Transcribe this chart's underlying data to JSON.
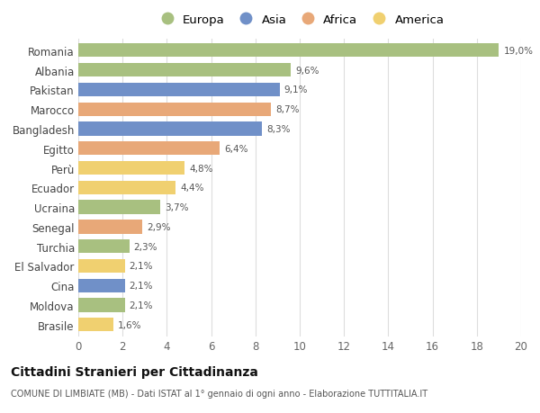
{
  "countries": [
    "Romania",
    "Albania",
    "Pakistan",
    "Marocco",
    "Bangladesh",
    "Egitto",
    "Perù",
    "Ecuador",
    "Ucraina",
    "Senegal",
    "Turchia",
    "El Salvador",
    "Cina",
    "Moldova",
    "Brasile"
  ],
  "values": [
    19.0,
    9.6,
    9.1,
    8.7,
    8.3,
    6.4,
    4.8,
    4.4,
    3.7,
    2.9,
    2.3,
    2.1,
    2.1,
    2.1,
    1.6
  ],
  "labels": [
    "19,0%",
    "9,6%",
    "9,1%",
    "8,7%",
    "8,3%",
    "6,4%",
    "4,8%",
    "4,4%",
    "3,7%",
    "2,9%",
    "2,3%",
    "2,1%",
    "2,1%",
    "2,1%",
    "1,6%"
  ],
  "continents": [
    "Europa",
    "Europa",
    "Asia",
    "Africa",
    "Asia",
    "Africa",
    "America",
    "America",
    "Europa",
    "Africa",
    "Europa",
    "America",
    "Asia",
    "Europa",
    "America"
  ],
  "colors": {
    "Europa": "#a8c080",
    "Asia": "#7090c8",
    "Africa": "#e8a878",
    "America": "#f0d070"
  },
  "legend_order": [
    "Europa",
    "Asia",
    "Africa",
    "America"
  ],
  "xlim": [
    0,
    20
  ],
  "xticks": [
    0,
    2,
    4,
    6,
    8,
    10,
    12,
    14,
    16,
    18,
    20
  ],
  "title": "Cittadini Stranieri per Cittadinanza",
  "subtitle": "COMUNE DI LIMBIATE (MB) - Dati ISTAT al 1° gennaio di ogni anno - Elaborazione TUTTITALIA.IT",
  "bg_color": "#ffffff",
  "bar_height": 0.7,
  "grid_color": "#dddddd"
}
